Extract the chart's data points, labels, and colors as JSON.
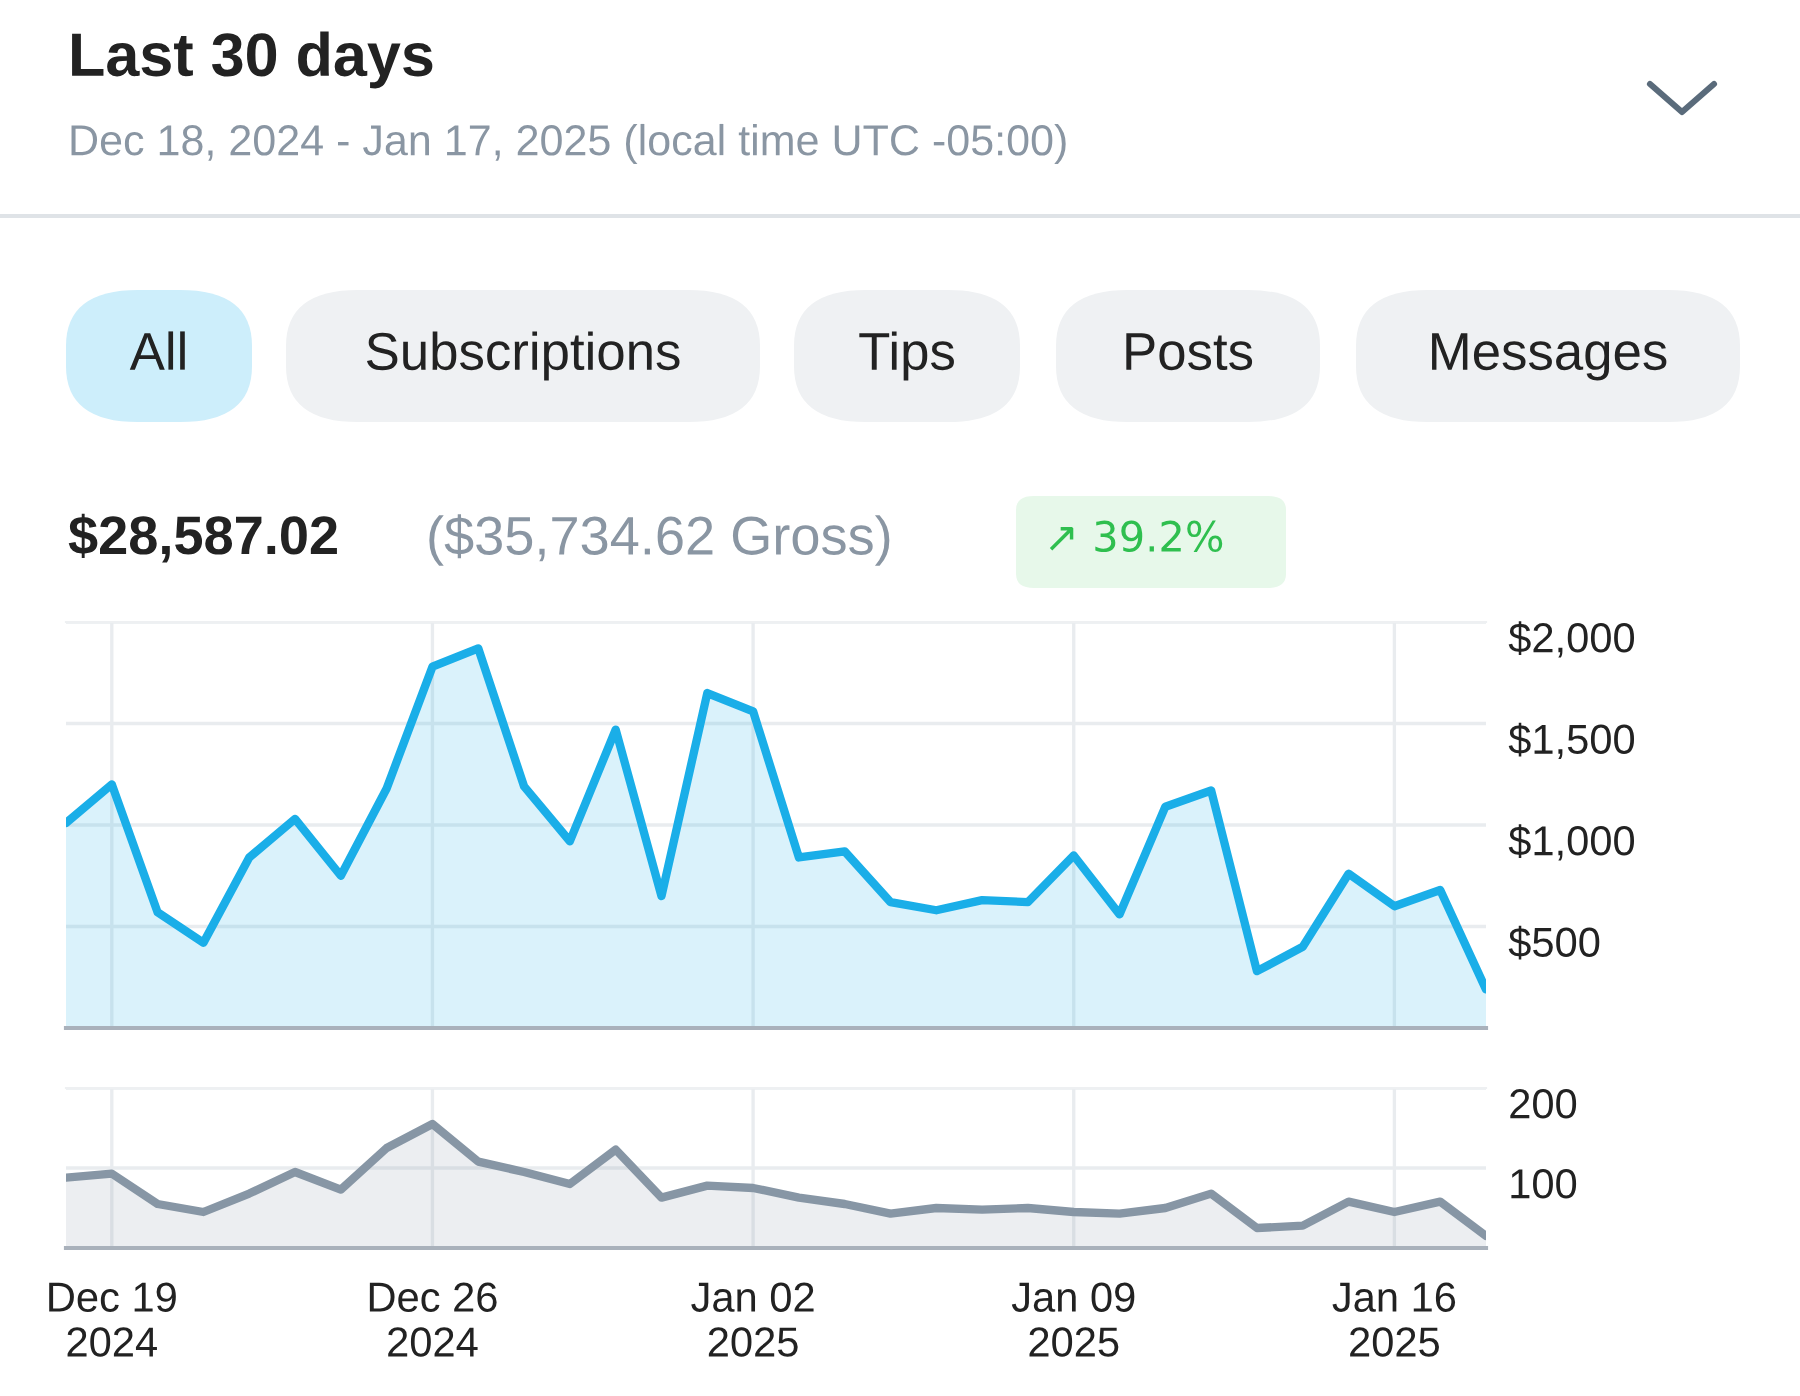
{
  "chart_data": [
    {
      "type": "area",
      "title": "Last 30 days",
      "subtitle": "Dec 18, 2024 - Jan 17, 2025 (local time UTC -05:00)",
      "annotations": [
        "All",
        "Subscriptions",
        "Tips",
        "Posts",
        "Messages",
        "$28,587.02",
        "($35,734.62 Gross)",
        "↗ 39.2%"
      ],
      "x": [
        "2024-12-18",
        "2024-12-19",
        "2024-12-20",
        "2024-12-21",
        "2024-12-22",
        "2024-12-23",
        "2024-12-24",
        "2024-12-25",
        "2024-12-26",
        "2024-12-27",
        "2024-12-28",
        "2024-12-29",
        "2024-12-30",
        "2024-12-31",
        "2025-01-01",
        "2025-01-02",
        "2025-01-03",
        "2025-01-04",
        "2025-01-05",
        "2025-01-06",
        "2025-01-07",
        "2025-01-08",
        "2025-01-09",
        "2025-01-10",
        "2025-01-11",
        "2025-01-12",
        "2025-01-13",
        "2025-01-14",
        "2025-01-15",
        "2025-01-16",
        "2025-01-17",
        "2025-01-18"
      ],
      "xticks": [
        {
          "value": "2024-12-19",
          "label": null
        },
        {
          "value": "2024-12-26",
          "label": null
        },
        {
          "value": "2025-01-02",
          "label": null
        },
        {
          "value": "2025-01-09",
          "label": null
        },
        {
          "value": "2025-01-16",
          "label": null
        }
      ],
      "series": [
        {
          "color": "#1aaee8",
          "values": [
            1010,
            1200,
            570,
            420,
            840,
            1030,
            750,
            1180,
            1780,
            1870,
            1190,
            920,
            1470,
            650,
            1650,
            1560,
            840,
            870,
            620,
            580,
            630,
            620,
            850,
            560,
            1090,
            1170,
            280,
            400,
            760,
            600,
            680,
            190
          ]
        }
      ],
      "xlim": [
        "2024-12-18",
        "2025-01-18"
      ],
      "ylim": [
        0,
        2000
      ],
      "yticks": [
        {
          "value": 500,
          "label": "$500"
        },
        {
          "value": 1000,
          "label": "$1,000"
        },
        {
          "value": 1500,
          "label": "$1,500"
        },
        {
          "value": 2000,
          "label": "$2,000"
        }
      ],
      "grid": true,
      "tick_labels": "y"
    },
    {
      "type": "area",
      "x": [
        "2024-12-18",
        "2024-12-19",
        "2024-12-20",
        "2024-12-21",
        "2024-12-22",
        "2024-12-23",
        "2024-12-24",
        "2024-12-25",
        "2024-12-26",
        "2024-12-27",
        "2024-12-28",
        "2024-12-29",
        "2024-12-30",
        "2024-12-31",
        "2025-01-01",
        "2025-01-02",
        "2025-01-03",
        "2025-01-04",
        "2025-01-05",
        "2025-01-06",
        "2025-01-07",
        "2025-01-08",
        "2025-01-09",
        "2025-01-10",
        "2025-01-11",
        "2025-01-12",
        "2025-01-13",
        "2025-01-14",
        "2025-01-15",
        "2025-01-16",
        "2025-01-17",
        "2025-01-18"
      ],
      "series": [
        {
          "color": "#8796a5",
          "values": [
            88,
            93,
            55,
            45,
            68,
            95,
            73,
            125,
            155,
            108,
            95,
            80,
            123,
            63,
            78,
            75,
            63,
            55,
            43,
            50,
            48,
            50,
            45,
            43,
            50,
            68,
            25,
            28,
            58,
            45,
            58,
            15
          ]
        }
      ],
      "xlim": [
        "2024-12-18",
        "2025-01-18"
      ],
      "xticks": [
        {
          "value": "2024-12-19",
          "label": "Dec 19\n2024"
        },
        {
          "value": "2024-12-26",
          "label": "Dec 26\n2024"
        },
        {
          "value": "2025-01-02",
          "label": "Jan 02\n2025"
        },
        {
          "value": "2025-01-09",
          "label": "Jan 09\n2025"
        },
        {
          "value": "2025-01-16",
          "label": "Jan 16\n2025"
        }
      ],
      "ylim": [
        0,
        200
      ],
      "yticks": [
        100,
        200
      ],
      "grid": true
    }
  ]
}
